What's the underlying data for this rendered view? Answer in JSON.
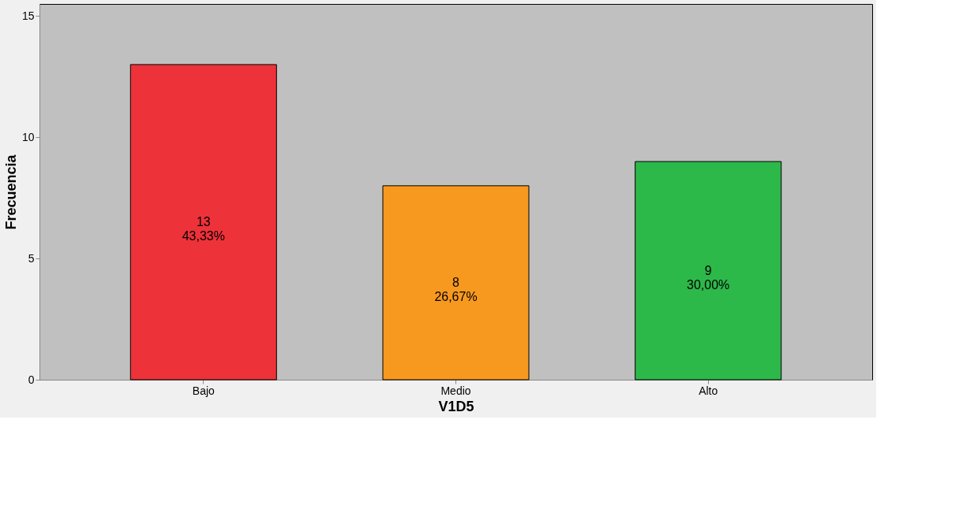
{
  "chart_data": {
    "type": "bar",
    "xlabel": "V1D5",
    "ylabel": "Frecuencia",
    "categories": [
      "Bajo",
      "Medio",
      "Alto"
    ],
    "values": [
      13,
      8,
      9
    ],
    "colors": [
      "#ee3239",
      "#f7991f",
      "#2db84a"
    ],
    "value_labels": [
      "13\n43,33%",
      "8\n26,67%",
      "9\n30,00%"
    ],
    "ylim": [
      0,
      15.5
    ],
    "yticks": [
      0,
      5,
      10,
      15
    ],
    "grid": false
  }
}
